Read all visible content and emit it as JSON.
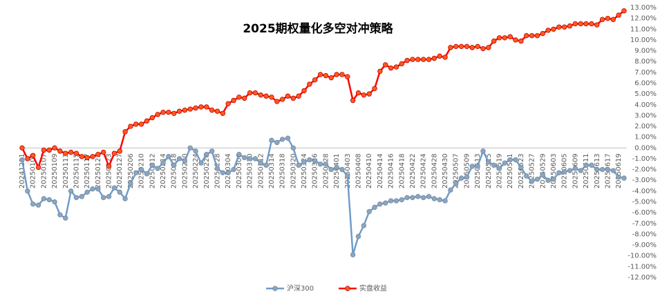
{
  "chart_data": {
    "type": "line",
    "title": "2025期权量化多空对冲策略",
    "categories": [
      "20241231",
      null,
      "20250103",
      null,
      "20250107",
      null,
      "20250109",
      null,
      "20250113",
      null,
      "20250115",
      null,
      "20250117",
      null,
      "20250121",
      null,
      "20250123",
      null,
      "20250127",
      null,
      "20250206",
      null,
      "20250210",
      null,
      "20250212",
      null,
      "20250214",
      null,
      "20250218",
      null,
      "20250220",
      null,
      "20250224",
      null,
      "20250226",
      null,
      "20250228",
      null,
      "20250304",
      null,
      "20250306",
      null,
      "20250310",
      null,
      "20250312",
      null,
      "20250314",
      null,
      "20250318",
      null,
      "20250320",
      null,
      "20250324",
      null,
      "20250326",
      null,
      "20250328",
      null,
      "20250401",
      null,
      "20250403",
      null,
      "20250408",
      null,
      "20250410",
      null,
      "20250414",
      null,
      "20250416",
      null,
      "20250418",
      null,
      "20250422",
      null,
      "20250424",
      null,
      "20250428",
      null,
      "20250430",
      null,
      "20250507",
      null,
      "20250509",
      null,
      "20250513",
      null,
      "20250515",
      null,
      "20250519",
      null,
      "20250521",
      null,
      "20250523",
      null,
      "20250527",
      null,
      "20250529",
      null,
      "20250603",
      null,
      "20250605",
      null,
      "20250609",
      null,
      "20250611",
      null,
      "20250613",
      null,
      "20250617",
      null,
      "20250619",
      null
    ],
    "series": [
      {
        "name": "沪深300",
        "color": "#6f9cc9",
        "marker_color": "#8da5bd",
        "values": [
          -1.1,
          -4.0,
          -5.2,
          -5.3,
          -4.7,
          -4.8,
          -5.0,
          -6.2,
          -6.5,
          -4.0,
          -4.6,
          -4.5,
          -4.1,
          -3.8,
          -3.8,
          -4.6,
          -4.5,
          -3.7,
          -4.1,
          -4.7,
          -3.3,
          -2.3,
          -2.0,
          -2.4,
          -1.6,
          -1.9,
          -1.4,
          -0.8,
          -1.6,
          -1.0,
          -1.2,
          0.0,
          -0.3,
          -1.4,
          -0.6,
          -0.3,
          -1.9,
          -2.3,
          -2.3,
          -2.0,
          -0.6,
          -0.9,
          -1.0,
          -1.0,
          -1.4,
          -1.6,
          0.7,
          0.5,
          0.8,
          0.9,
          0.0,
          -1.6,
          -1.3,
          -1.1,
          -1.2,
          -1.5,
          -1.5,
          -2.0,
          -1.8,
          -2.0,
          -2.6,
          -9.9,
          -8.2,
          -7.2,
          -5.9,
          -5.5,
          -5.2,
          -5.1,
          -4.9,
          -4.9,
          -4.8,
          -4.6,
          -4.6,
          -4.5,
          -4.6,
          -4.5,
          -4.7,
          -4.8,
          -4.9,
          -3.9,
          -3.3,
          -2.8,
          -2.7,
          -1.7,
          -1.7,
          -0.3,
          -1.3,
          -1.6,
          -1.9,
          -1.4,
          -1.1,
          -1.1,
          -1.8,
          -2.6,
          -3.1,
          -2.9,
          -2.5,
          -3.0,
          -2.9,
          -2.3,
          -2.2,
          -2.1,
          -1.9,
          -2.1,
          -1.6,
          -1.6,
          -2.0,
          -2.0,
          -2.0,
          -2.1,
          -2.7,
          -2.8
        ]
      },
      {
        "name": "实盘收益",
        "color": "#ff0000",
        "marker_color": "#ff5a1e",
        "values": [
          0.0,
          -1.0,
          -0.7,
          -1.8,
          -0.2,
          -0.2,
          0.0,
          -0.3,
          -0.5,
          -0.4,
          -0.5,
          -0.8,
          -0.9,
          -0.8,
          -0.6,
          -0.4,
          -1.7,
          -0.5,
          -0.3,
          1.5,
          2.0,
          2.2,
          2.2,
          2.5,
          2.8,
          3.1,
          3.3,
          3.3,
          3.2,
          3.4,
          3.5,
          3.6,
          3.7,
          3.8,
          3.8,
          3.5,
          3.4,
          3.2,
          4.1,
          4.4,
          4.7,
          4.6,
          5.1,
          5.1,
          4.9,
          4.8,
          4.7,
          4.3,
          4.5,
          4.8,
          4.6,
          4.8,
          5.3,
          5.9,
          6.3,
          6.8,
          6.7,
          6.5,
          6.8,
          6.8,
          6.6,
          4.4,
          5.1,
          4.9,
          5.0,
          5.5,
          7.1,
          7.7,
          7.4,
          7.5,
          7.8,
          8.1,
          8.2,
          8.2,
          8.2,
          8.2,
          8.3,
          8.5,
          8.4,
          9.3,
          9.4,
          9.4,
          9.4,
          9.3,
          9.4,
          9.2,
          9.3,
          9.9,
          10.2,
          10.2,
          10.3,
          10.0,
          9.9,
          10.4,
          10.4,
          10.4,
          10.6,
          10.9,
          11.0,
          11.2,
          11.2,
          11.3,
          11.5,
          11.5,
          11.5,
          11.5,
          11.4,
          11.9,
          12.0,
          11.9,
          12.3,
          12.7
        ]
      }
    ],
    "ylim": [
      -12,
      13
    ],
    "yticks": [
      {
        "value": 13,
        "label": "13.00%"
      },
      {
        "value": 12,
        "label": "12.00%"
      },
      {
        "value": 11,
        "label": "11.00%"
      },
      {
        "value": 10,
        "label": "10.00%"
      },
      {
        "value": 9,
        "label": "9.00%"
      },
      {
        "value": 8,
        "label": "8.00%"
      },
      {
        "value": 7,
        "label": "7.00%"
      },
      {
        "value": 6,
        "label": "6.00%"
      },
      {
        "value": 5,
        "label": "5.00%"
      },
      {
        "value": 4,
        "label": "4.00%"
      },
      {
        "value": 3,
        "label": "3.00%"
      },
      {
        "value": 2,
        "label": "2.00%"
      },
      {
        "value": 1,
        "label": "1.00%"
      },
      {
        "value": 0,
        "label": "0.00%"
      },
      {
        "value": -1,
        "label": "-1.00%"
      },
      {
        "value": -2,
        "label": "-2.00%"
      },
      {
        "value": -3,
        "label": "-3.00%"
      },
      {
        "value": -4,
        "label": "-4.00%"
      },
      {
        "value": -5,
        "label": "-5.00%"
      },
      {
        "value": -6,
        "label": "-6.00%"
      },
      {
        "value": -7,
        "label": "-7.00%"
      },
      {
        "value": -8,
        "label": "-8.00%"
      },
      {
        "value": -9,
        "label": "-9.00%"
      },
      {
        "value": -10,
        "label": "-10.00%"
      },
      {
        "value": -11,
        "label": "-11.00%"
      },
      {
        "value": -12,
        "label": "-12.00%"
      }
    ],
    "grid": false,
    "legend": "bottom"
  }
}
